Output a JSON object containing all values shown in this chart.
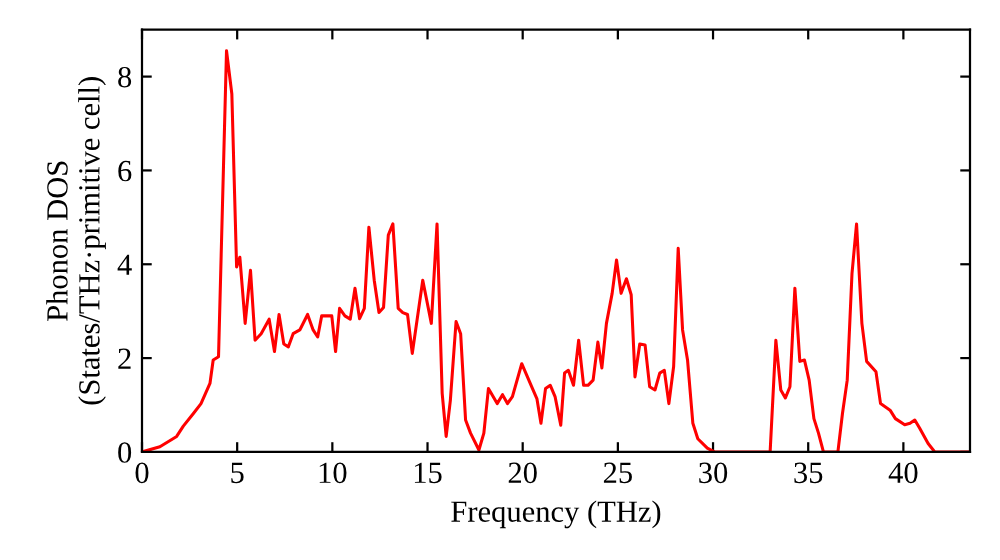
{
  "chart_data": {
    "type": "line",
    "xlabel": "Frequency (THz)",
    "ylabel": "Phonon DOS\n(States/THz·primitive cell)",
    "xlim": [
      0,
      43.5
    ],
    "ylim": [
      0,
      9
    ],
    "xticks": [
      0,
      5,
      10,
      15,
      20,
      25,
      30,
      35,
      40
    ],
    "yticks": [
      0,
      2,
      4,
      6,
      8
    ],
    "grid": false,
    "legend": false,
    "marker": "none",
    "line_style": "solid",
    "series": [
      {
        "color": "#ff0000",
        "x": [
          0,
          0.94,
          1.82,
          2.17,
          2.7,
          3.1,
          3.57,
          3.74,
          4.02,
          4.44,
          4.72,
          4.97,
          5.14,
          5.42,
          5.7,
          5.94,
          6.26,
          6.68,
          6.96,
          7.2,
          7.45,
          7.69,
          7.94,
          8.29,
          8.7,
          8.99,
          9.23,
          9.44,
          9.97,
          10.17,
          10.38,
          10.66,
          10.94,
          11.19,
          11.43,
          11.68,
          11.92,
          12.2,
          12.45,
          12.69,
          12.94,
          13.18,
          13.46,
          13.7,
          13.95,
          14.2,
          14.75,
          15.2,
          15.5,
          15.77,
          15.98,
          16.2,
          16.5,
          16.74,
          17.0,
          17.26,
          17.7,
          17.96,
          18.2,
          18.66,
          18.94,
          19.2,
          19.46,
          19.95,
          20.47,
          20.75,
          20.96,
          21.2,
          21.45,
          21.7,
          22.0,
          22.2,
          22.4,
          22.67,
          22.94,
          23.2,
          23.43,
          23.7,
          23.95,
          24.16,
          24.4,
          24.7,
          24.93,
          25.17,
          25.45,
          25.7,
          25.9,
          26.15,
          26.43,
          26.67,
          26.95,
          27.2,
          27.44,
          27.68,
          27.93,
          28.17,
          28.4,
          28.66,
          28.94,
          29.2,
          29.7,
          30.07,
          33.0,
          33.3,
          33.56,
          33.8,
          34.04,
          34.3,
          34.56,
          34.8,
          35.05,
          35.3,
          35.54,
          35.8,
          36.56,
          36.8,
          37.05,
          37.3,
          37.54,
          37.82,
          38.07,
          38.56,
          38.8,
          39.3,
          39.58,
          40.07,
          40.35,
          40.6,
          40.85,
          41.3,
          41.65,
          43.4
        ],
        "values": [
          0,
          0.11,
          0.33,
          0.55,
          0.82,
          1.03,
          1.46,
          1.96,
          2.03,
          8.55,
          7.63,
          3.94,
          4.15,
          2.74,
          3.87,
          2.38,
          2.52,
          2.83,
          2.14,
          2.93,
          2.3,
          2.24,
          2.52,
          2.6,
          2.93,
          2.6,
          2.45,
          2.9,
          2.9,
          2.14,
          3.06,
          2.9,
          2.83,
          3.49,
          2.84,
          3.06,
          4.79,
          3.66,
          2.97,
          3.08,
          4.62,
          4.86,
          3.06,
          2.97,
          2.93,
          2.1,
          3.66,
          2.74,
          4.86,
          1.25,
          0.33,
          1.1,
          2.78,
          2.52,
          0.68,
          0.4,
          0.04,
          0.4,
          1.35,
          1.03,
          1.22,
          1.03,
          1.18,
          1.88,
          1.39,
          1.13,
          0.61,
          1.35,
          1.42,
          1.18,
          0.57,
          1.68,
          1.74,
          1.42,
          2.38,
          1.42,
          1.42,
          1.53,
          2.34,
          1.79,
          2.74,
          3.38,
          4.09,
          3.38,
          3.69,
          3.35,
          1.6,
          2.3,
          2.28,
          1.39,
          1.32,
          1.68,
          1.74,
          1.03,
          1.82,
          4.34,
          2.6,
          1.96,
          0.61,
          0.28,
          0.08,
          0,
          0,
          2.38,
          1.32,
          1.15,
          1.39,
          3.49,
          1.93,
          1.96,
          1.53,
          0.71,
          0.4,
          0,
          0,
          0.82,
          1.53,
          3.8,
          4.86,
          2.74,
          1.93,
          1.71,
          1.03,
          0.89,
          0.71,
          0.58,
          0.61,
          0.68,
          0.51,
          0.18,
          0,
          0
        ]
      }
    ]
  }
}
